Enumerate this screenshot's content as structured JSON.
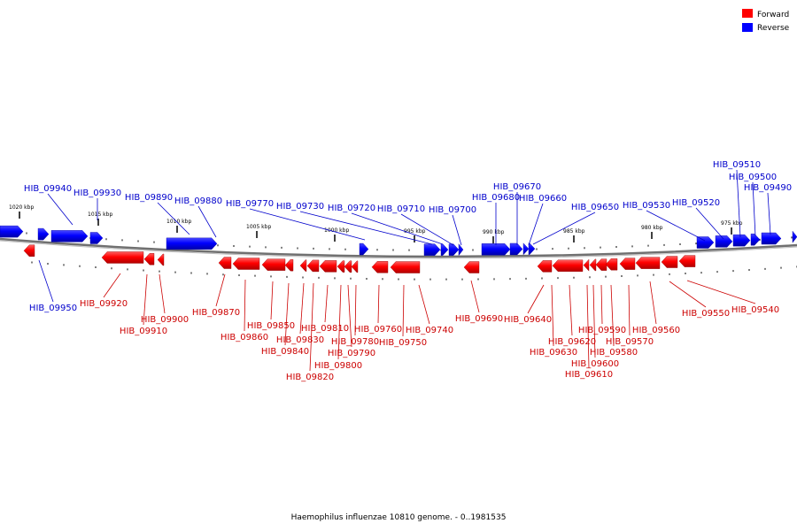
{
  "caption": "Haemophilus influenzae 10810 genome. - 0..1981535",
  "legend": {
    "forward": {
      "label": "Forward",
      "color": "#ff0000"
    },
    "reverse": {
      "label": "Reverse",
      "color": "#0000ff"
    }
  },
  "colors": {
    "forward_label": "#cc0000",
    "reverse_label": "#0000cc",
    "backbone": "#808080"
  },
  "scale_ticks": [
    "1020 kbp",
    "1015 kbp",
    "1010 kbp",
    "1005 kbp",
    "1000 kbp",
    "995 kbp",
    "990 kbp",
    "985 kbp",
    "980 kbp",
    "975 kbp"
  ],
  "reverse_genes": [
    "HIB_09940",
    "HIB_09930",
    "HIB_09890",
    "HIB_09880",
    "HIB_09770",
    "HIB_09730",
    "HIB_09720",
    "HIB_09710",
    "HIB_09700",
    "HIB_09680",
    "HIB_09670",
    "HIB_09660",
    "HIB_09650",
    "HIB_09530",
    "HIB_09520",
    "HIB_09510",
    "HIB_09500",
    "HIB_09490",
    "HIB_09950"
  ],
  "forward_genes": [
    "HIB_09920",
    "HIB_09910",
    "HIB_09900",
    "HIB_09870",
    "HIB_09860",
    "HIB_09850",
    "HIB_09840",
    "HIB_09830",
    "HIB_09820",
    "HIB_09810",
    "HIB_09800",
    "HIB_09790",
    "HIB_09780",
    "HIB_09760",
    "HIB_09750",
    "HIB_09740",
    "HIB_09690",
    "HIB_09640",
    "HIB_09630",
    "HIB_09620",
    "HIB_09610",
    "HIB_09600",
    "HIB_09590",
    "HIB_09580",
    "HIB_09570",
    "HIB_09560",
    "HIB_09550",
    "HIB_09540"
  ]
}
